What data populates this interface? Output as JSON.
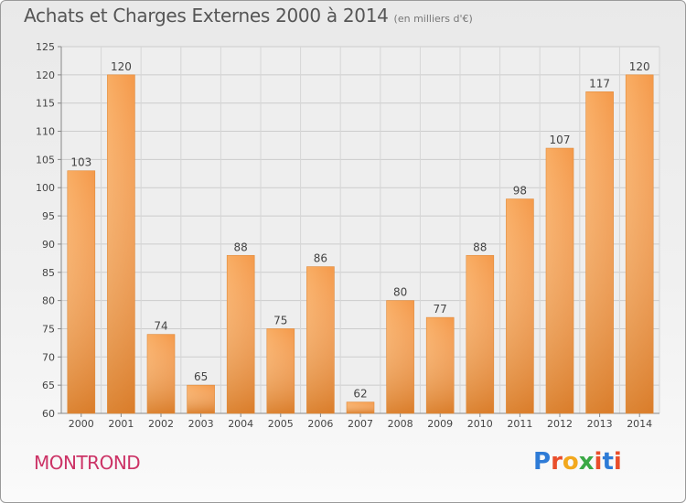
{
  "header": {
    "title": "Achats et Charges Externes 2000 à 2014",
    "subtitle": "(en milliers d'€)"
  },
  "footer": {
    "city": "MONTROND",
    "logo": [
      "P",
      "r",
      "o",
      "x",
      "i",
      "t",
      "i"
    ]
  },
  "colors": {
    "bar_light": "#f7a65a",
    "bar_dark": "#d06f16",
    "title": "#555555",
    "city": "#cc3366"
  },
  "chart_data": {
    "type": "bar",
    "title": "Achats et Charges Externes 2000 à 2014",
    "subtitle": "(en milliers d'€)",
    "xlabel": "",
    "ylabel": "",
    "categories": [
      "2000",
      "2001",
      "2002",
      "2003",
      "2004",
      "2005",
      "2006",
      "2007",
      "2008",
      "2009",
      "2010",
      "2011",
      "2012",
      "2013",
      "2014"
    ],
    "values": [
      103,
      120,
      74,
      65,
      88,
      75,
      86,
      62,
      80,
      77,
      88,
      98,
      107,
      117,
      120
    ],
    "data_labels": [
      "103",
      "120",
      "74",
      "65",
      "88",
      "75",
      "86",
      "62",
      "80",
      "77",
      "88",
      "98",
      "107",
      "117",
      "120"
    ],
    "ylim": [
      60,
      125
    ],
    "yticks": [
      60,
      65,
      70,
      75,
      80,
      85,
      90,
      95,
      100,
      105,
      110,
      115,
      120,
      125
    ],
    "grid": true,
    "legend": "none"
  }
}
